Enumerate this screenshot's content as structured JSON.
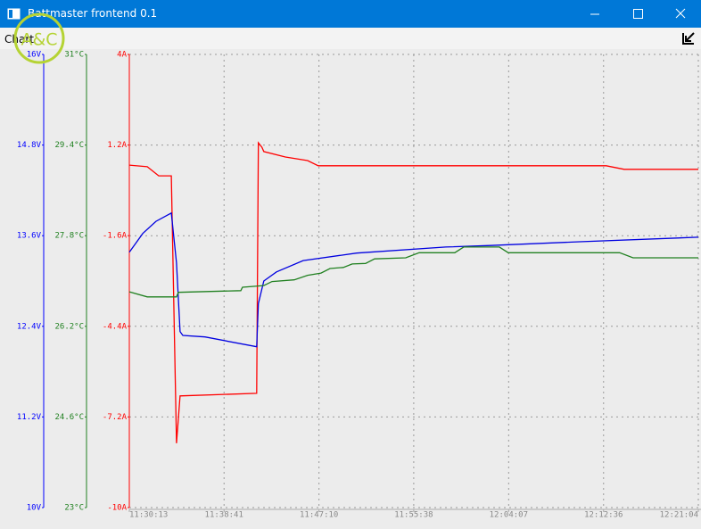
{
  "window": {
    "title": "Battmaster frontend 0.1"
  },
  "menu": {
    "items": [
      "Chart"
    ]
  },
  "logo": "A&C",
  "chart_data": {
    "type": "line",
    "grid": true,
    "xlim": [
      "11:30:13",
      "12:21:04"
    ],
    "xticks": [
      "11:30:13",
      "11:38:41",
      "11:47:10",
      "11:55:38",
      "12:04:07",
      "12:12:36",
      "12:21:04"
    ],
    "ylim": [
      -10,
      4
    ],
    "yticks": [
      {
        "value": 4,
        "label": "4A"
      },
      {
        "value": 1.2,
        "label": "1.2A"
      },
      {
        "value": -1.6,
        "label": "-1.6A"
      },
      {
        "value": -4.4,
        "label": "-4.4A"
      },
      {
        "value": -7.2,
        "label": "-7.2A"
      },
      {
        "value": -10,
        "label": "-10A"
      }
    ],
    "y2lim": [
      10,
      16
    ],
    "y2ticks": [
      {
        "value": 16,
        "label": "16V"
      },
      {
        "value": 14.8,
        "label": "14.8V"
      },
      {
        "value": 13.6,
        "label": "13.6V"
      },
      {
        "value": 12.4,
        "label": "12.4V"
      },
      {
        "value": 11.2,
        "label": "11.2V"
      },
      {
        "value": 10,
        "label": "10V"
      }
    ],
    "y3lim": [
      23,
      31
    ],
    "y3ticks": [
      {
        "value": 31,
        "label": "31°C"
      },
      {
        "value": 29.4,
        "label": "29.4°C"
      },
      {
        "value": 27.8,
        "label": "27.8°C"
      },
      {
        "value": 26.2,
        "label": "26.2°C"
      },
      {
        "value": 24.6,
        "label": "24.6°C"
      },
      {
        "value": 23,
        "label": "23°C"
      }
    ],
    "axis_colors": {
      "y": "#ff0000",
      "y2": "#0000ff",
      "y3": "#208020"
    },
    "series": [
      {
        "axis": "y",
        "color": "#ff0000",
        "x": [
          "11:30:13",
          "11:31:49",
          "11:32:51",
          "11:33:58",
          "11:34:26",
          "11:34:45",
          "11:41:36",
          "11:41:45",
          "11:42:04",
          "11:42:14",
          "11:44:10",
          "11:46:09",
          "11:47:06",
          "12:12:50",
          "12:14:26",
          "12:21:04"
        ],
        "values": [
          0.58,
          0.53,
          0.25,
          0.25,
          -8.01,
          -6.55,
          -6.47,
          1.27,
          1.13,
          1.0,
          0.83,
          0.72,
          0.56,
          0.56,
          0.45,
          0.45
        ]
      },
      {
        "axis": "y2",
        "color": "#0000e0",
        "x": [
          "11:30:13",
          "11:31:25",
          "11:32:36",
          "11:33:58",
          "11:34:26",
          "11:34:45",
          "11:35:00",
          "11:36:59",
          "11:41:36",
          "11:41:45",
          "11:42:14",
          "11:43:22",
          "11:45:45",
          "11:50:32",
          "11:58:30",
          "12:02:29",
          "12:10:27",
          "12:21:04"
        ],
        "values": [
          13.38,
          13.63,
          13.79,
          13.9,
          13.24,
          12.33,
          12.28,
          12.26,
          12.13,
          12.7,
          13.0,
          13.12,
          13.27,
          13.37,
          13.45,
          13.47,
          13.52,
          13.58
        ]
      },
      {
        "axis": "y3",
        "color": "#208020",
        "x": [
          "11:30:13",
          "11:31:49",
          "11:34:26",
          "11:34:36",
          "11:40:11",
          "11:40:20",
          "11:42:14",
          "11:42:58",
          "11:44:57",
          "11:46:09",
          "11:47:21",
          "11:48:09",
          "11:49:20",
          "11:50:08",
          "11:51:20",
          "11:52:08",
          "11:54:55",
          "11:56:07",
          "11:59:18",
          "12:00:06",
          "12:03:17",
          "12:04:05",
          "12:14:02",
          "12:15:14",
          "12:21:04"
        ],
        "values": [
          26.81,
          26.72,
          26.72,
          26.8,
          26.83,
          26.89,
          26.92,
          26.99,
          27.02,
          27.1,
          27.14,
          27.22,
          27.24,
          27.3,
          27.31,
          27.39,
          27.41,
          27.5,
          27.5,
          27.6,
          27.6,
          27.5,
          27.5,
          27.41,
          27.41
        ]
      }
    ]
  }
}
